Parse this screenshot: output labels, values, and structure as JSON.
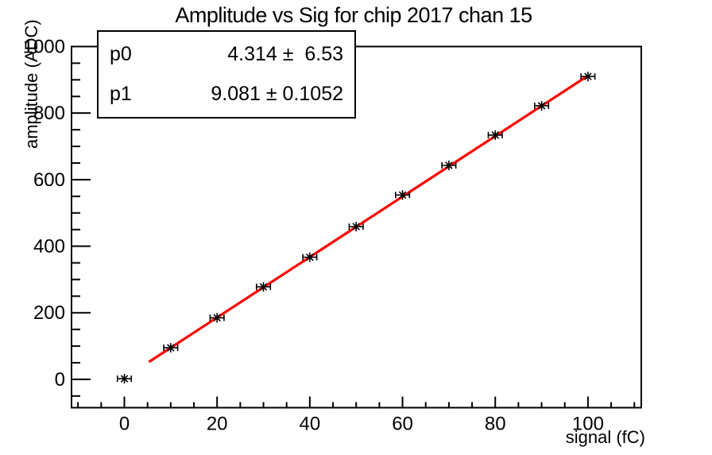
{
  "title": "Amplitude vs Sig for chip 2017 chan 15",
  "colors": {
    "background": "#ffffff",
    "axis": "#000000",
    "text": "#000000",
    "fit_line": "#ff0000",
    "marker": "#000000"
  },
  "stats_box": {
    "rows": [
      {
        "name": "p0",
        "value": "4.314",
        "pm": "±",
        "error": "6.53",
        "display": "4.314 ±  6.53"
      },
      {
        "name": "p1",
        "value": "9.081",
        "pm": "±",
        "error": "0.1052",
        "display": "9.081 ± 0.1052"
      }
    ]
  },
  "chart_data": {
    "type": "scatter",
    "title": "Amplitude vs Sig for chip 2017 chan 15",
    "xlabel": "signal (fC)",
    "ylabel": "amplitude (ADC)",
    "xlim": [
      -11.4,
      111.5
    ],
    "ylim": [
      -85,
      1000
    ],
    "x_major_ticks": [
      0,
      20,
      40,
      60,
      80,
      100
    ],
    "x_tick_labels": [
      "0",
      "20",
      "40",
      "60",
      "80",
      "100"
    ],
    "x_minor_step": 5,
    "y_major_ticks": [
      0,
      200,
      400,
      600,
      800,
      1000
    ],
    "y_tick_labels": [
      "0",
      "200",
      "400",
      "600",
      "800",
      "1000"
    ],
    "y_minor_step": 50,
    "grid": false,
    "legend": "none",
    "marker": "asterisk-with-x-error-bars",
    "x": [
      0,
      10,
      20,
      30,
      40,
      50,
      60,
      70,
      80,
      90,
      100
    ],
    "y": [
      2,
      95,
      185,
      278,
      367,
      459,
      554,
      643,
      734,
      822,
      910
    ],
    "x_err": 1.5,
    "fit": {
      "type": "linear",
      "p0": 4.314,
      "p0_err": 6.53,
      "p1": 9.081,
      "p1_err": 0.1052,
      "x_range": [
        5.3,
        100
      ]
    }
  }
}
